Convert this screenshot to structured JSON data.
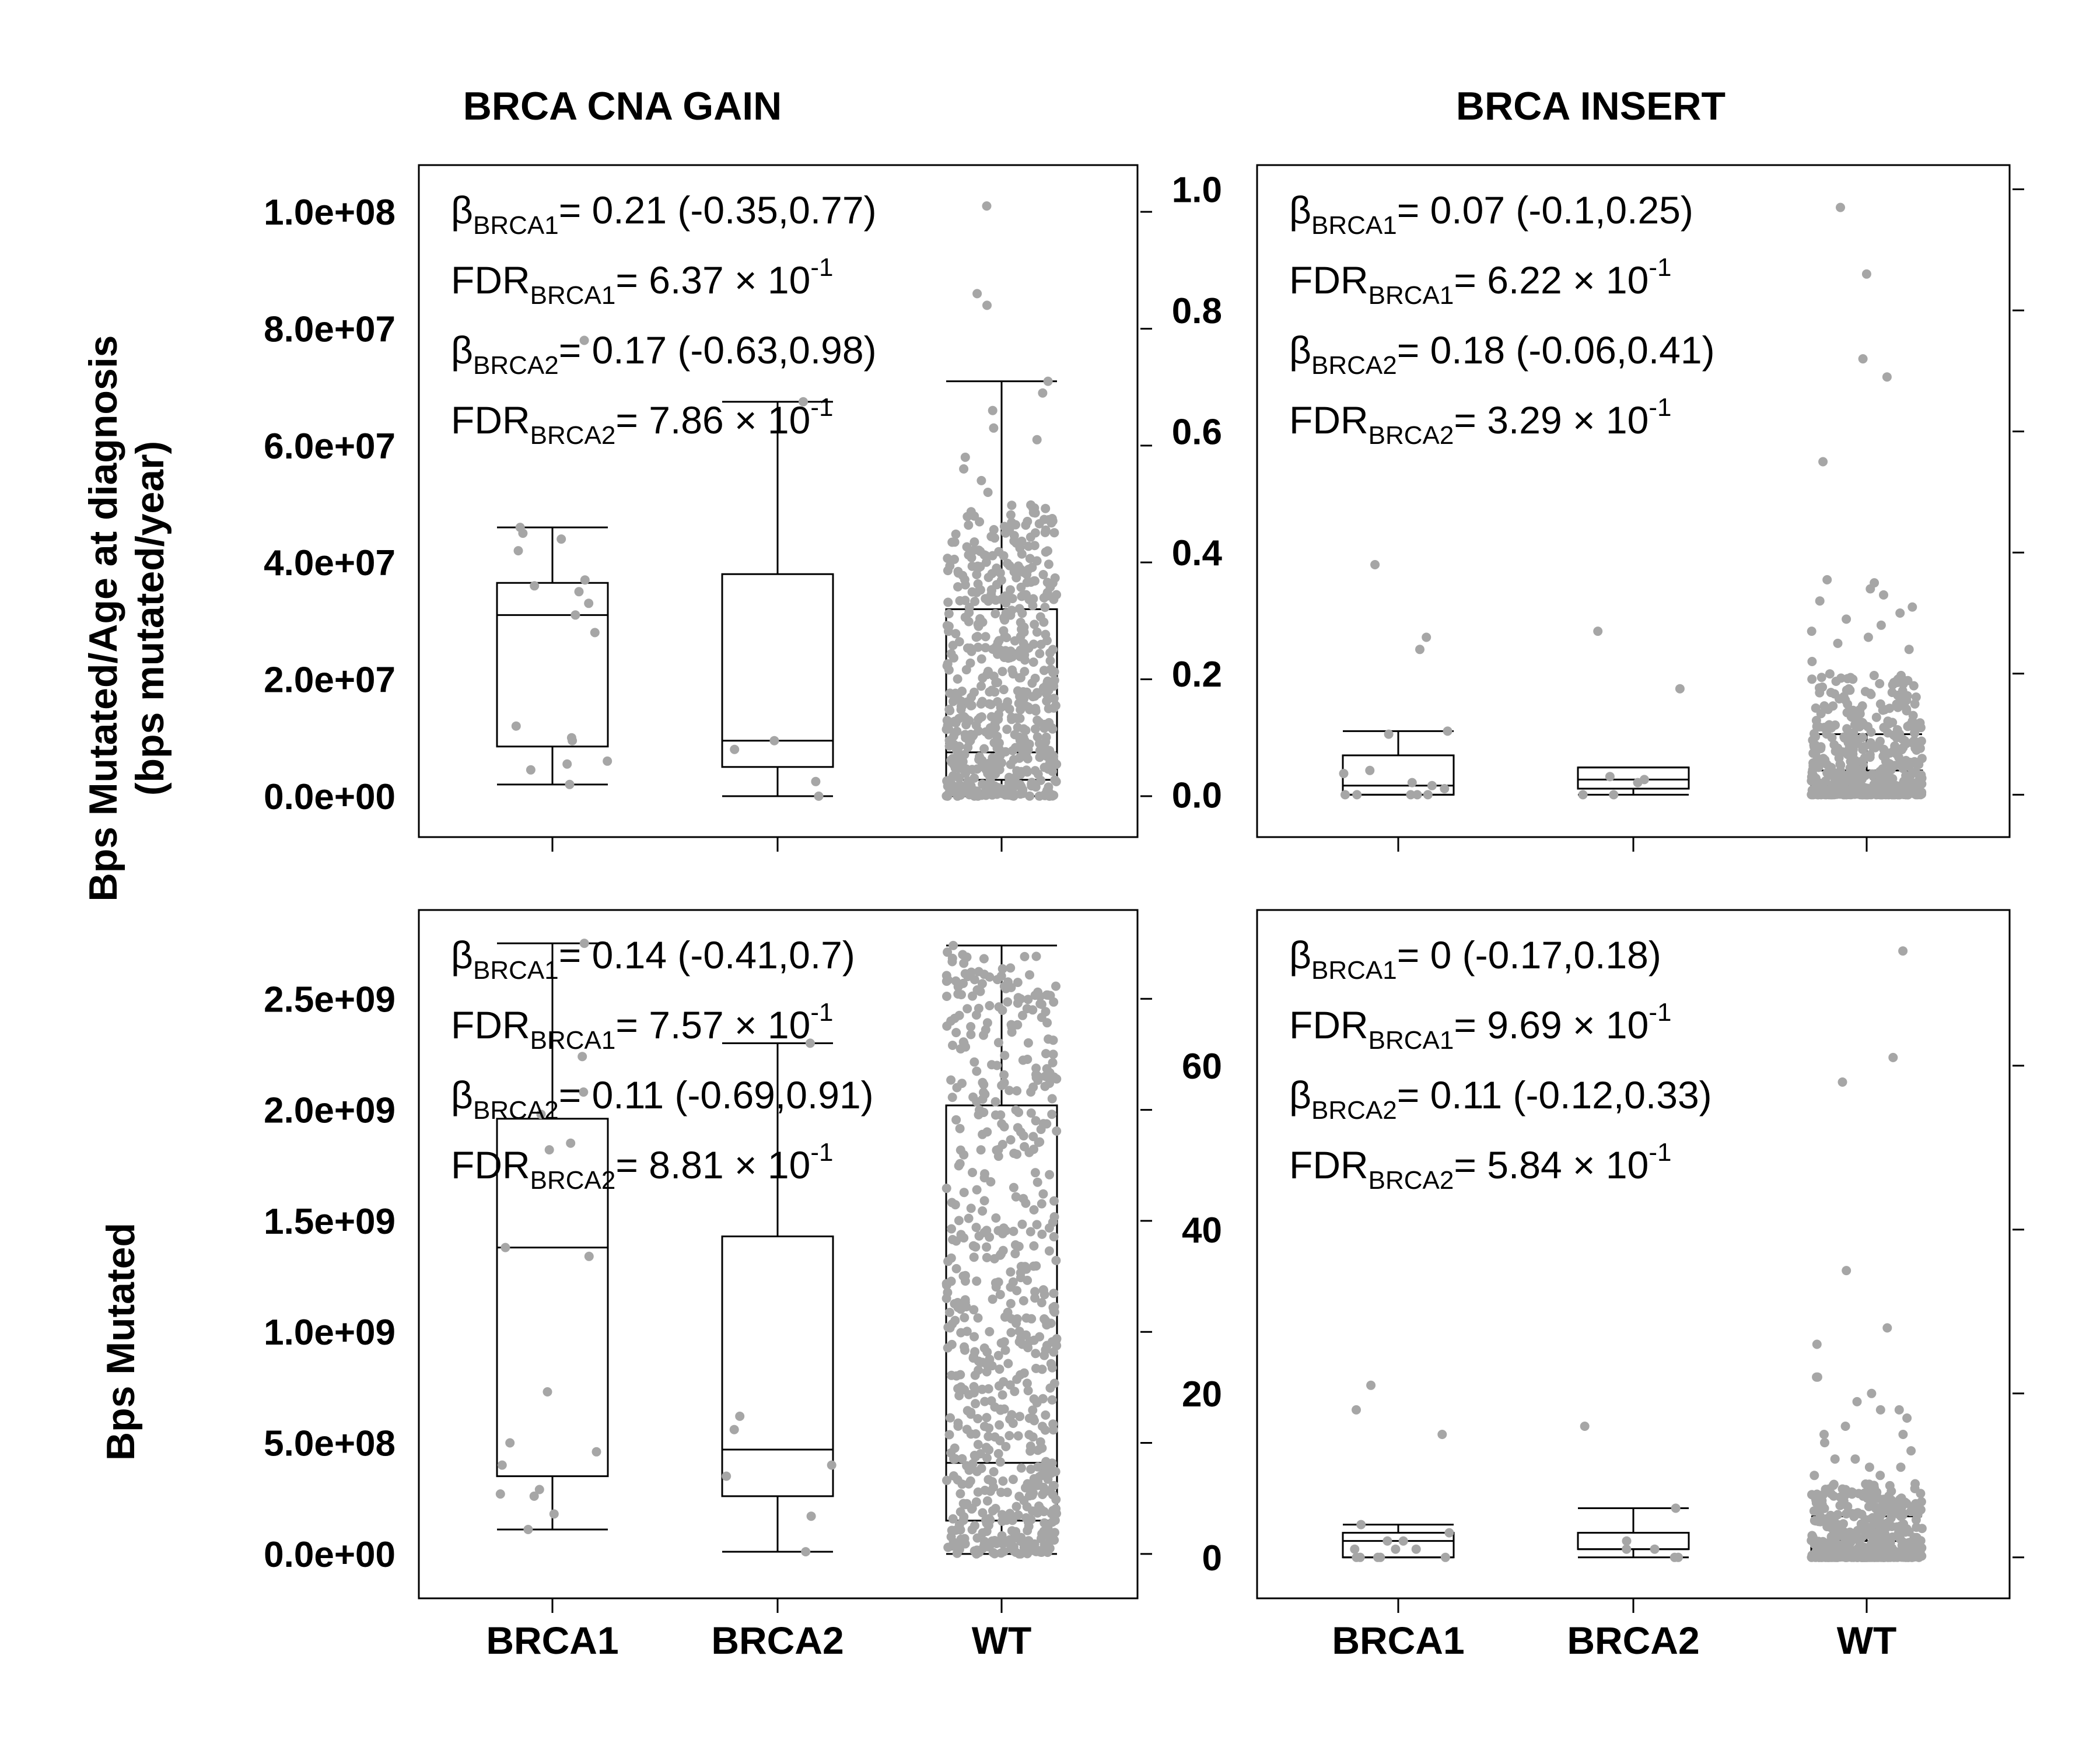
{
  "figure": {
    "panel_titles": [
      "BRCA CNA GAIN",
      "BRCA INSERT"
    ],
    "row_titles": [
      [
        "Bps Mutated/Age at diagnosis",
        "(bps mutated/year)"
      ],
      [
        "Bps Mutated"
      ]
    ],
    "categories": [
      "BRCA1",
      "BRCA2",
      "WT"
    ],
    "point_color": "#a6a6a6"
  },
  "chart_data": [
    {
      "type": "box",
      "title": "BRCA CNA GAIN",
      "ylabel": "Bps Mutated/Age at diagnosis (bps mutated/year)",
      "categories": [
        "BRCA1",
        "BRCA2",
        "WT"
      ],
      "ylim": [
        -7000000,
        108000000
      ],
      "yticks": [
        0,
        20000000,
        40000000,
        60000000,
        80000000,
        100000000
      ],
      "ytick_labels": [
        "0.0e+00",
        "2.0e+07",
        "4.0e+07",
        "6.0e+07",
        "8.0e+07",
        "1.0e+08"
      ],
      "yaxis_side": "left",
      "boxes": [
        {
          "category": "BRCA1",
          "whisker_low": 2000000,
          "q1": 8500000,
          "median": 31000000,
          "q3": 36500000,
          "whisker_high": 46000000
        },
        {
          "category": "BRCA2",
          "whisker_low": 0,
          "q1": 5000000,
          "median": 9500000,
          "q3": 38000000,
          "whisker_high": 67500000
        },
        {
          "category": "WT",
          "whisker_low": 0,
          "q1": 2800000,
          "median": 7500000,
          "q3": 32000000,
          "whisker_high": 71000000
        }
      ],
      "points": {
        "BRCA1": [
          2000000,
          4500000,
          5500000,
          6000000,
          9500000,
          10000000,
          12000000,
          28000000,
          31000000,
          33000000,
          35000000,
          36000000,
          37000000,
          42000000,
          44000000,
          45000000,
          46000000,
          78000000
        ],
        "BRCA2": [
          0,
          2500000,
          8000000,
          9500000,
          67500000
        ],
        "WT": [
          101000000,
          86000000,
          84000000,
          71000000,
          69000000,
          66000000,
          63000000,
          61000000,
          58000000,
          56000000,
          54000000,
          52000000
        ]
      },
      "wt_dense_points": {
        "count": 560,
        "min": 0,
        "max": 50000000,
        "concentration": "low"
      },
      "annotations": [
        {
          "sym": "β",
          "sub": "BRCA1",
          "text": "= 0.21 (-0.35,0.77)"
        },
        {
          "sym": "FDR",
          "sub": "BRCA1",
          "text": "= 6.37 × 10",
          "exp": "-1"
        },
        {
          "sym": "β",
          "sub": "BRCA2",
          "text": "= 0.17 (-0.63,0.98)"
        },
        {
          "sym": "FDR",
          "sub": "BRCA2",
          "text": "= 7.86 × 10",
          "exp": "-1"
        }
      ]
    },
    {
      "type": "box",
      "title": "BRCA INSERT",
      "ylabel": "Bps Mutated/Age at diagnosis (bps mutated/year)",
      "categories": [
        "BRCA1",
        "BRCA2",
        "WT"
      ],
      "ylim": [
        -0.07,
        1.04
      ],
      "yticks": [
        0,
        0.2,
        0.4,
        0.6,
        0.8,
        1.0
      ],
      "ytick_labels": [
        "0.0",
        "0.2",
        "0.4",
        "0.6",
        "0.8",
        "1.0"
      ],
      "yaxis_side": "left",
      "boxes": [
        {
          "category": "BRCA1",
          "whisker_low": 0,
          "q1": 0,
          "median": 0.015,
          "q3": 0.065,
          "whisker_high": 0.105
        },
        {
          "category": "BRCA2",
          "whisker_low": 0,
          "q1": 0.01,
          "median": 0.025,
          "q3": 0.045,
          "whisker_high": 0.045
        },
        {
          "category": "WT",
          "whisker_low": 0,
          "q1": 0,
          "median": 0.015,
          "q3": 0.04,
          "whisker_high": 0.1
        }
      ],
      "points": {
        "BRCA1": [
          0,
          0,
          0,
          0,
          0,
          0.01,
          0.015,
          0.02,
          0.035,
          0.04,
          0.1,
          0.105,
          0.24,
          0.26,
          0.38
        ],
        "BRCA2": [
          0,
          0,
          0.02,
          0.025,
          0.03,
          0.175,
          0.27
        ],
        "WT": [
          0.97,
          0.86,
          0.72,
          0.69,
          0.55,
          0.355,
          0.35,
          0.34,
          0.33,
          0.32,
          0.31,
          0.3,
          0.29,
          0.28,
          0.27,
          0.26,
          0.25,
          0.24,
          0.22
        ]
      },
      "wt_dense_points": {
        "count": 520,
        "min": 0,
        "max": 0.2,
        "concentration": "high"
      },
      "annotations": [
        {
          "sym": "β",
          "sub": "BRCA1",
          "text": "= 0.07 (-0.1,0.25)"
        },
        {
          "sym": "FDR",
          "sub": "BRCA1",
          "text": "= 6.22 × 10",
          "exp": "-1"
        },
        {
          "sym": "β",
          "sub": "BRCA2",
          "text": "= 0.18 (-0.06,0.41)"
        },
        {
          "sym": "FDR",
          "sub": "BRCA2",
          "text": "= 3.29 × 10",
          "exp": "-1"
        }
      ]
    },
    {
      "type": "box",
      "title": "BRCA CNA GAIN",
      "ylabel": "Bps Mutated",
      "categories": [
        "BRCA1",
        "BRCA2",
        "WT"
      ],
      "ylim": [
        -200000000,
        2900000000
      ],
      "yticks": [
        0,
        500000000,
        1000000000,
        1500000000,
        2000000000,
        2500000000
      ],
      "ytick_labels": [
        "0.0e+00",
        "5.0e+08",
        "1.0e+09",
        "1.5e+09",
        "2.0e+09",
        "2.5e+09"
      ],
      "yaxis_side": "left",
      "boxes": [
        {
          "category": "BRCA1",
          "whisker_low": 110000000,
          "q1": 350000000,
          "median": 1380000000,
          "q3": 1960000000,
          "whisker_high": 2750000000
        },
        {
          "category": "BRCA2",
          "whisker_low": 10000000,
          "q1": 260000000,
          "median": 470000000,
          "q3": 1430000000,
          "whisker_high": 2300000000
        },
        {
          "category": "WT",
          "whisker_low": 0,
          "q1": 150000000,
          "median": 410000000,
          "q3": 2020000000,
          "whisker_high": 2740000000
        }
      ],
      "points": {
        "BRCA1": [
          110000000,
          180000000,
          260000000,
          270000000,
          290000000,
          400000000,
          460000000,
          500000000,
          730000000,
          1340000000,
          1380000000,
          1820000000,
          1850000000,
          1980000000,
          2080000000,
          2240000000,
          2750000000
        ],
        "BRCA2": [
          10000000,
          170000000,
          350000000,
          400000000,
          560000000,
          620000000,
          2300000000
        ],
        "WT": [
          2740000000,
          2710000000,
          2690000000,
          2660000000,
          2620000000,
          2580000000,
          2540000000,
          2500000000,
          2450000000,
          2400000000,
          2350000000,
          2300000000,
          2250000000,
          2200000000,
          2150000000,
          2100000000,
          2050000000,
          1980000000,
          1900000000,
          1800000000
        ]
      },
      "wt_dense_points": {
        "count": 620,
        "min": 0,
        "max": 2700000000,
        "concentration": "low"
      },
      "annotations": [
        {
          "sym": "β",
          "sub": "BRCA1",
          "text": "= 0.14 (-0.41,0.7)"
        },
        {
          "sym": "FDR",
          "sub": "BRCA1",
          "text": "= 7.57 × 10",
          "exp": "-1"
        },
        {
          "sym": "β",
          "sub": "BRCA2",
          "text": "= 0.11 (-0.69,0.91)"
        },
        {
          "sym": "FDR",
          "sub": "BRCA2",
          "text": "= 8.81 × 10",
          "exp": "-1"
        }
      ]
    },
    {
      "type": "box",
      "title": "BRCA INSERT",
      "ylabel": "Bps Mutated",
      "categories": [
        "BRCA1",
        "BRCA2",
        "WT"
      ],
      "ylim": [
        -5,
        79
      ],
      "yticks": [
        0,
        20,
        40,
        60
      ],
      "ytick_labels": [
        "0",
        "20",
        "40",
        "60"
      ],
      "yaxis_side": "left",
      "boxes": [
        {
          "category": "BRCA1",
          "whisker_low": 0,
          "q1": 0,
          "median": 2,
          "q3": 3,
          "whisker_high": 4
        },
        {
          "category": "BRCA2",
          "whisker_low": 0,
          "q1": 1,
          "median": 1,
          "q3": 3,
          "whisker_high": 6
        },
        {
          "category": "WT",
          "whisker_low": 0,
          "q1": 0,
          "median": 1,
          "q3": 2,
          "whisker_high": 5
        }
      ],
      "points": {
        "BRCA1": [
          0,
          0,
          0,
          0,
          0,
          1,
          1,
          1,
          2,
          2,
          3,
          4,
          15,
          18,
          21
        ],
        "BRCA2": [
          0,
          0,
          1,
          1,
          2,
          6,
          16
        ],
        "WT": [
          74,
          61,
          58,
          35,
          28,
          26,
          22,
          22,
          20,
          19,
          18,
          18,
          17,
          16,
          15,
          15,
          14,
          13,
          12,
          12,
          11,
          11,
          10,
          10
        ]
      },
      "wt_dense_points": {
        "count": 520,
        "min": 0,
        "max": 9,
        "concentration": "high"
      },
      "annotations": [
        {
          "sym": "β",
          "sub": "BRCA1",
          "text": "= 0 (-0.17,0.18)"
        },
        {
          "sym": "FDR",
          "sub": "BRCA1",
          "text": "= 9.69 × 10",
          "exp": "-1"
        },
        {
          "sym": "β",
          "sub": "BRCA2",
          "text": "= 0.11 (-0.12,0.33)"
        },
        {
          "sym": "FDR",
          "sub": "BRCA2",
          "text": "= 5.84 × 10",
          "exp": "-1"
        }
      ]
    }
  ]
}
